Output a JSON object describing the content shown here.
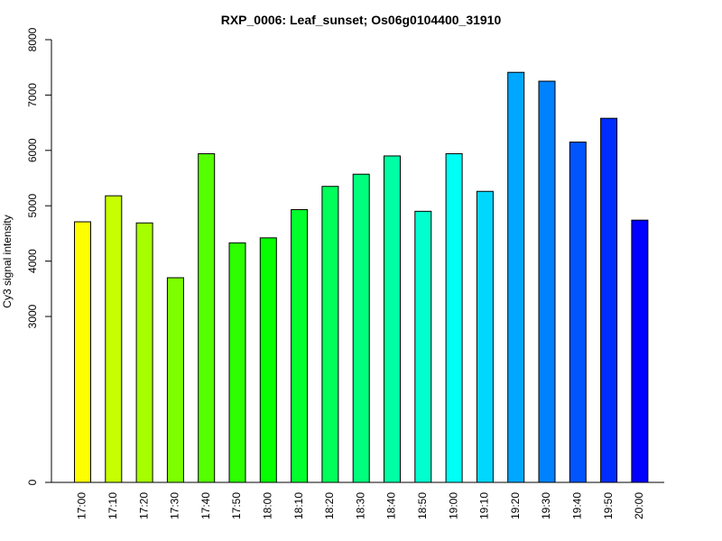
{
  "chart_data": {
    "type": "bar",
    "title": "RXP_0006: Leaf_sunset; Os06g0104400_31910",
    "xlabel": "",
    "ylabel": "Cy3 signal intensity",
    "y_ticks": [
      "0",
      "3000",
      "4000",
      "5000",
      "6000",
      "7000",
      "8000"
    ],
    "y_axis_note": "axis is non-linear: 0 at baseline, then 3000-8000 linear region",
    "categories": [
      "17:00",
      "17:10",
      "17:20",
      "17:30",
      "17:40",
      "17:50",
      "18:00",
      "18:10",
      "18:20",
      "18:30",
      "18:40",
      "18:50",
      "19:00",
      "19:10",
      "19:20",
      "19:30",
      "19:40",
      "19:50",
      "20:00"
    ],
    "values": [
      4710,
      5180,
      4690,
      3700,
      5940,
      4330,
      4420,
      4930,
      5350,
      5570,
      5900,
      4900,
      5940,
      5260,
      7410,
      7250,
      6150,
      6580,
      4740
    ],
    "colors": [
      "#ffff00",
      "#c7ff00",
      "#a5ff00",
      "#7dff00",
      "#55ff00",
      "#2dff00",
      "#05ff00",
      "#00ff2d",
      "#00ff5a",
      "#00ff7d",
      "#00ffa5",
      "#00ffcf",
      "#00fff7",
      "#00d7ff",
      "#00a7ff",
      "#0082ff",
      "#0055ff",
      "#002dff",
      "#0000ff"
    ],
    "grid": false,
    "legend": "none"
  }
}
